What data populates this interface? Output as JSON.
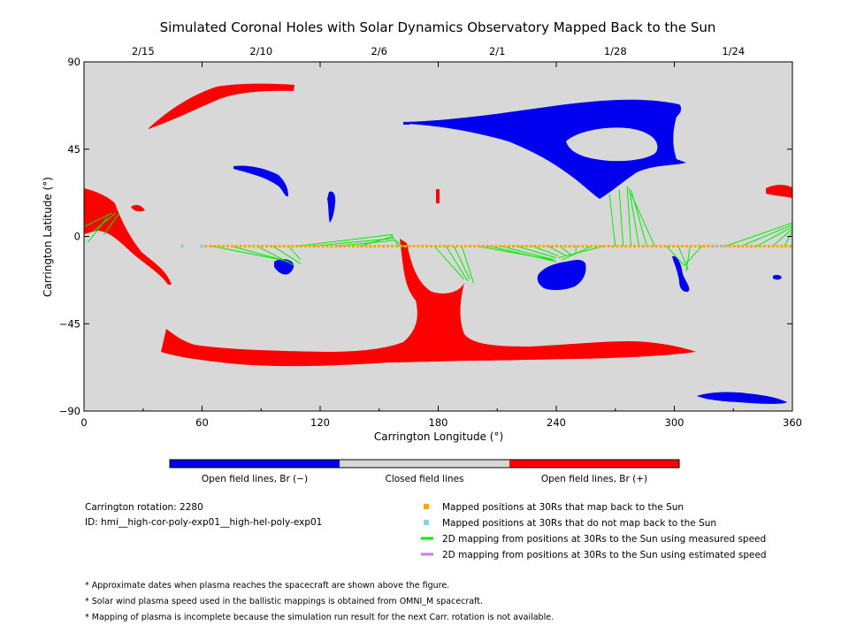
{
  "chart_data": {
    "type": "map",
    "title": "Simulated Coronal Holes with Solar Dynamics Observatory Mapped Back to the Sun",
    "xlabel": "Carrington Longitude (°)",
    "ylabel": "Carrington Latitude (°)",
    "xlim": [
      0,
      360
    ],
    "ylim": [
      -90,
      90
    ],
    "x_ticks": [
      "0",
      "60",
      "120",
      "180",
      "240",
      "300",
      "360"
    ],
    "y_ticks": [
      "90",
      "45",
      "0",
      "−45",
      "−90"
    ],
    "top_dates": [
      {
        "label": "2/15",
        "lon": 30
      },
      {
        "label": "2/10",
        "lon": 90
      },
      {
        "label": "2/6",
        "lon": 150
      },
      {
        "label": "2/1",
        "lon": 210
      },
      {
        "label": "1/28",
        "lon": 270
      },
      {
        "label": "1/24",
        "lon": 330
      }
    ],
    "colors": {
      "negative": "#0000ee",
      "closed": "#d8d8d8",
      "positive": "#ff0000",
      "mapped_positions": "#ffa500",
      "unmapped_positions": "#87cefa",
      "measured_speed_line": "#00ee00",
      "estimated_speed_line": "#c080f0"
    },
    "colorbar_labels": [
      "Open field lines, Br (−)",
      "Closed field lines",
      "Open field lines, Br (+)"
    ],
    "legend": [
      {
        "kind": "square",
        "color": "#ffa500",
        "label": "Mapped positions at 30Rs that map back to the Sun"
      },
      {
        "kind": "square",
        "color": "#87cefa",
        "label": "Mapped positions at 30Rs that do not map back to the Sun"
      },
      {
        "kind": "line",
        "color": "#00ee00",
        "label": "2D mapping from positions at 30Rs to the Sun using measured speed"
      },
      {
        "kind": "line",
        "color": "#c080f0",
        "label": "2D mapping from positions at 30Rs to the Sun using estimated speed"
      }
    ],
    "info": [
      "Carrington rotation: 2280",
      "ID: hmi__high-cor-poly-exp01__high-hel-poly-exp01"
    ],
    "notes": [
      "* Approximate dates when plasma reaches the spacecraft are shown above the figure.",
      "* Solar wind plasma speed used in the ballistic mappings is obtained from OMNI_M spacecraft.",
      "* Mapping of plasma is incomplete because the simulation run result for the next Carr. rotation is not available."
    ],
    "unmapped_positions": [
      [
        50,
        -5
      ],
      [
        60,
        -5
      ],
      [
        321,
        -5
      ],
      [
        325,
        -5
      ]
    ],
    "mapped_positions_range": {
      "lon": [
        62,
        360
      ],
      "lat": -5
    },
    "mapping_lines": [
      [
        [
          0,
          5
        ],
        [
          14,
          12
        ]
      ],
      [
        [
          5,
          3
        ],
        [
          16,
          12
        ]
      ],
      [
        [
          10,
          1
        ],
        [
          18,
          12
        ]
      ],
      [
        [
          2,
          -3
        ],
        [
          12,
          10
        ]
      ],
      [
        [
          65,
          -5
        ],
        [
          100,
          -12
        ]
      ],
      [
        [
          75,
          -5
        ],
        [
          104,
          -13
        ]
      ],
      [
        [
          88,
          -5
        ],
        [
          107,
          -15
        ]
      ],
      [
        [
          96,
          -5
        ],
        [
          110,
          -14
        ]
      ],
      [
        [
          104,
          -5
        ],
        [
          110,
          -12
        ]
      ],
      [
        [
          108,
          -5
        ],
        [
          157,
          1
        ]
      ],
      [
        [
          116,
          -5
        ],
        [
          157,
          -1
        ]
      ],
      [
        [
          128,
          -5
        ],
        [
          158,
          -2
        ]
      ],
      [
        [
          140,
          -5
        ],
        [
          157,
          0
        ]
      ],
      [
        [
          160,
          -5
        ],
        [
          156,
          1
        ]
      ],
      [
        [
          162,
          -5
        ],
        [
          158,
          -2
        ]
      ],
      [
        [
          166,
          -5
        ],
        [
          160,
          -5
        ]
      ],
      [
        [
          178,
          -5
        ],
        [
          193,
          -22
        ]
      ],
      [
        [
          184,
          -5
        ],
        [
          195,
          -23
        ]
      ],
      [
        [
          188,
          -5
        ],
        [
          196,
          -22
        ]
      ],
      [
        [
          192,
          -5
        ],
        [
          198,
          -24
        ]
      ],
      [
        [
          200,
          -5
        ],
        [
          238,
          -12
        ]
      ],
      [
        [
          206,
          -5
        ],
        [
          240,
          -13
        ]
      ],
      [
        [
          212,
          -5
        ],
        [
          239,
          -12
        ]
      ],
      [
        [
          220,
          -5
        ],
        [
          240,
          -11
        ]
      ],
      [
        [
          228,
          -5
        ],
        [
          241,
          -10
        ]
      ],
      [
        [
          236,
          -5
        ],
        [
          245,
          -10
        ]
      ],
      [
        [
          242,
          -5
        ],
        [
          248,
          -10
        ]
      ],
      [
        [
          250,
          -5
        ],
        [
          250,
          -9
        ]
      ],
      [
        [
          258,
          -5
        ],
        [
          243,
          -12
        ]
      ],
      [
        [
          264,
          -5
        ],
        [
          241,
          -11
        ]
      ],
      [
        [
          270,
          -5
        ],
        [
          267,
          22
        ]
      ],
      [
        [
          274,
          -5
        ],
        [
          272,
          24
        ]
      ],
      [
        [
          278,
          -5
        ],
        [
          276,
          26
        ]
      ],
      [
        [
          282,
          -5
        ],
        [
          277,
          25
        ]
      ],
      [
        [
          286,
          -5
        ],
        [
          278,
          24
        ]
      ],
      [
        [
          290,
          -5
        ],
        [
          278,
          22
        ]
      ],
      [
        [
          296,
          -5
        ],
        [
          305,
          -15
        ]
      ],
      [
        [
          302,
          -5
        ],
        [
          307,
          -17
        ]
      ],
      [
        [
          308,
          -5
        ],
        [
          306,
          -18
        ]
      ],
      [
        [
          314,
          -5
        ],
        [
          305,
          -15
        ]
      ],
      [
        [
          326,
          -5
        ],
        [
          360,
          7
        ]
      ],
      [
        [
          334,
          -5
        ],
        [
          360,
          6
        ]
      ],
      [
        [
          342,
          -5
        ],
        [
          360,
          5
        ]
      ],
      [
        [
          350,
          -5
        ],
        [
          360,
          4
        ]
      ],
      [
        [
          356,
          -5
        ],
        [
          360,
          3
        ]
      ]
    ]
  }
}
